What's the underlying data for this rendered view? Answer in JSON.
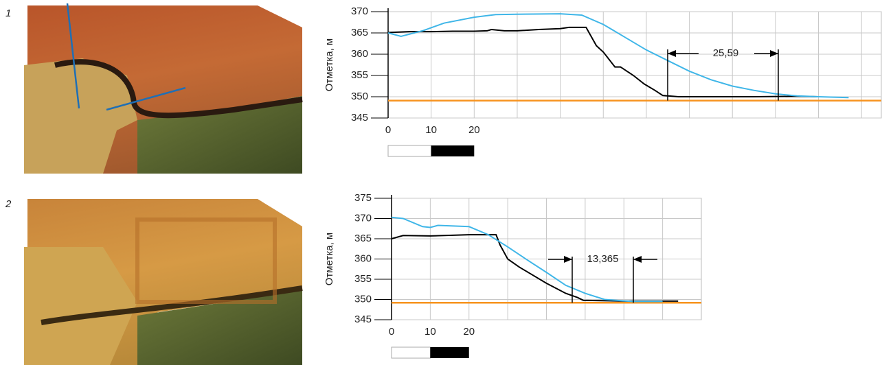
{
  "panels": [
    {
      "label": "1",
      "chart_data": {
        "type": "line",
        "ylabel": "Отметка, м",
        "ylim": [
          345,
          370
        ],
        "yticks": [
          345,
          350,
          355,
          360,
          365,
          370
        ],
        "xlim": [
          0,
          114.6
        ],
        "xticks": [
          0,
          10,
          20,
          {
            "value": 30,
            "label": null
          },
          {
            "value": 40,
            "label": null
          },
          {
            "value": 50,
            "label": null
          },
          {
            "value": 60,
            "label": null
          },
          {
            "value": 70,
            "label": null
          },
          {
            "value": 80,
            "label": null
          },
          {
            "value": 90,
            "label": null
          },
          {
            "value": 100,
            "label": null
          },
          {
            "value": 110,
            "label": null
          }
        ],
        "grid": true,
        "reference_line": {
          "y": 349.1,
          "color": "#f7931e"
        },
        "series": [
          {
            "color": "#000000",
            "x": [
              0,
              5,
              10,
              15,
              20,
              23,
              24,
              27,
              30,
              35,
              40,
              42,
              46,
              48.4,
              50,
              52.7,
              54,
              57,
              59.5,
              62,
              63.8,
              67.5,
              75,
              85,
              95,
              100
            ],
            "values": [
              365.1,
              365.3,
              365.3,
              365.4,
              365.4,
              365.5,
              365.8,
              365.5,
              365.5,
              365.8,
              366,
              366.3,
              366.3,
              362,
              360.5,
              357,
              357,
              355,
              353,
              351.5,
              350.3,
              350,
              350,
              350,
              350.1,
              350
            ]
          },
          {
            "color": "#3fb6e8",
            "x": [
              0,
              3,
              8,
              13,
              20,
              25,
              30,
              40,
              45,
              50,
              55,
              60,
              65,
              70,
              75,
              80,
              85,
              90,
              95,
              100,
              107
            ],
            "values": [
              365,
              364.2,
              365.5,
              367.3,
              368.7,
              369.3,
              369.4,
              369.5,
              369.2,
              367,
              364,
              361,
              358.5,
              356,
              354,
              352.5,
              351.5,
              350.7,
              350.2,
              350,
              349.8
            ]
          }
        ],
        "annotation": "25,59"
      }
    },
    {
      "label": "2",
      "chart_data": {
        "type": "line",
        "ylabel": "Отметка, м",
        "ylim": [
          345,
          375
        ],
        "yticks": [
          345,
          350,
          355,
          360,
          365,
          370,
          375
        ],
        "xlim": [
          0,
          80
        ],
        "xticks": [
          0,
          10,
          20,
          {
            "value": 30,
            "label": null
          },
          {
            "value": 40,
            "label": null
          },
          {
            "value": 50,
            "label": null
          },
          {
            "value": 60,
            "label": null
          },
          {
            "value": 70,
            "label": null
          }
        ],
        "grid": true,
        "reference_line": {
          "y": 349.2,
          "color": "#f7931e"
        },
        "series": [
          {
            "color": "#000000",
            "x": [
              0,
              3,
              10,
              20,
              27,
              28,
              30,
              33,
              40,
              45,
              48,
              49.5,
              60,
              74
            ],
            "values": [
              365,
              365.8,
              365.7,
              366,
              366,
              363.5,
              360,
              358,
              354,
              351.5,
              350.5,
              349.8,
              349.6,
              349.6
            ]
          },
          {
            "color": "#3fb6e8",
            "x": [
              0,
              3,
              8,
              10,
              12,
              20,
              25,
              30,
              35,
              40,
              45,
              50,
              55,
              62,
              70
            ],
            "values": [
              370.3,
              370,
              368,
              367.8,
              368.3,
              368,
              366,
              363,
              359.8,
              356.7,
              353.5,
              351.5,
              350,
              349.5,
              349.5
            ]
          }
        ],
        "annotation": "13,365"
      }
    }
  ]
}
